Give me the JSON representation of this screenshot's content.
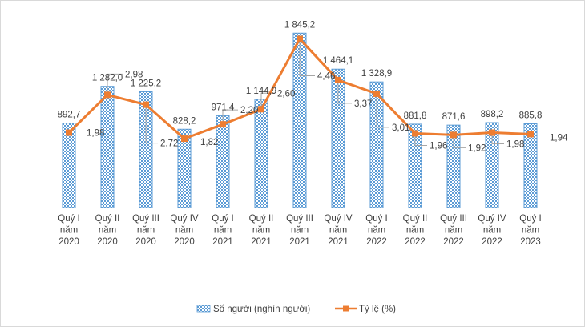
{
  "chart_data": {
    "type": "bar+line",
    "title": "",
    "categories": [
      [
        "Quý I",
        "năm",
        "2020"
      ],
      [
        "Quý II",
        "năm",
        "2020"
      ],
      [
        "Quý III",
        "năm",
        "2020"
      ],
      [
        "Quý IV",
        "năm",
        "2020"
      ],
      [
        "Quý I",
        "năm",
        "2021"
      ],
      [
        "Quý II",
        "năm",
        "2021"
      ],
      [
        "Quý III",
        "năm",
        "2021"
      ],
      [
        "Quý IV",
        "năm",
        "2021"
      ],
      [
        "Quý I",
        "năm",
        "2022"
      ],
      [
        "Quý II",
        "năm",
        "2022"
      ],
      [
        "Quý III",
        "năm",
        "2022"
      ],
      [
        "Quý IV",
        "năm",
        "2022"
      ],
      [
        "Quý I",
        "năm",
        "2023"
      ]
    ],
    "series": [
      {
        "name": "Số người (nghìn người)",
        "type": "bar",
        "axis": "left",
        "color": "#5B9BD5",
        "values": [
          892.7,
          1282.0,
          1225.2,
          828.2,
          971.4,
          1144.9,
          1845.2,
          1464.1,
          1328.9,
          881.8,
          871.6,
          898.2,
          885.8
        ],
        "labels": [
          "892,7",
          "1 282,0",
          "1 225,2",
          "828,2",
          "971,4",
          "1 144,9",
          "1 845,2",
          "1 464,1",
          "1 328,9",
          "881,8",
          "871,6",
          "898,2",
          "885,8"
        ]
      },
      {
        "name": "Tỷ lệ (%)",
        "type": "line",
        "axis": "right",
        "color": "#ED7D31",
        "values": [
          1.98,
          2.98,
          2.72,
          1.82,
          2.2,
          2.6,
          4.46,
          3.37,
          3.01,
          1.96,
          1.92,
          1.98,
          1.94
        ],
        "labels": [
          "1,98",
          "2,98",
          "2,72",
          "1,82",
          "2,20",
          "2,60",
          "4,46",
          "3,37",
          "3,01",
          "1,96",
          "1,92",
          "1,98",
          "1,94"
        ]
      }
    ],
    "ylim_left": [
      0,
      2000
    ],
    "ylim_right": [
      0,
      5
    ],
    "grid": false,
    "legend_position": "bottom"
  }
}
